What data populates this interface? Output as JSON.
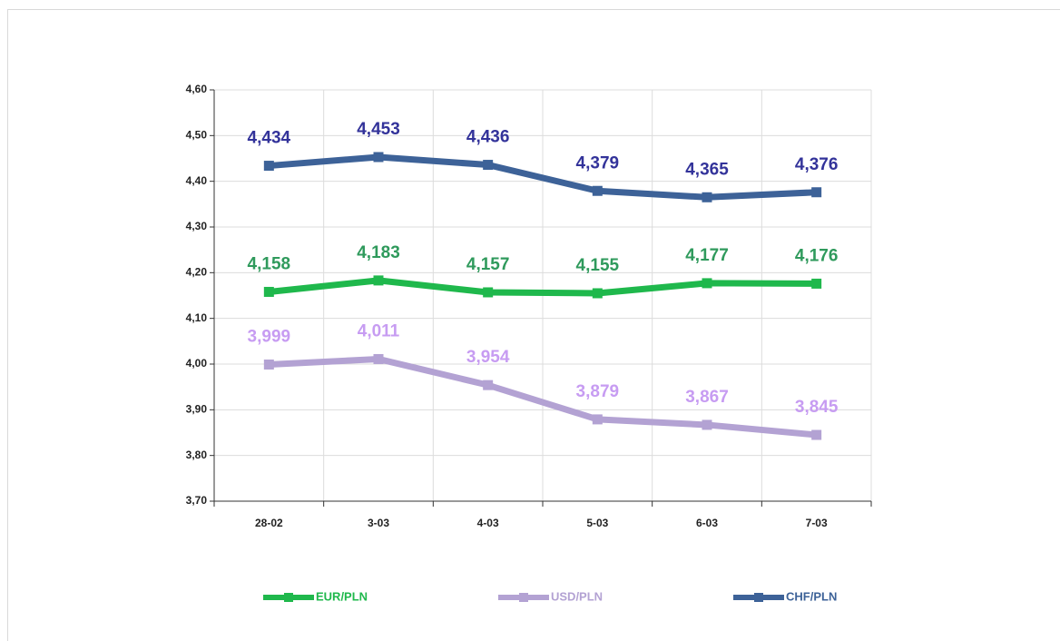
{
  "chart_data": {
    "type": "line",
    "categories": [
      "28-02",
      "3-03",
      "4-03",
      "5-03",
      "6-03",
      "7-03"
    ],
    "series": [
      {
        "name": "EUR/PLN",
        "color": "#1fb84c",
        "label_color": "#2f9a5c",
        "values": [
          4.158,
          4.183,
          4.157,
          4.155,
          4.177,
          4.176
        ],
        "value_labels": [
          "4,158",
          "4,183",
          "4,157",
          "4,155",
          "4,177",
          "4,176"
        ]
      },
      {
        "name": "USD/PLN",
        "color": "#b3a2d3",
        "label_color": "#c79cf2",
        "values": [
          3.999,
          4.011,
          3.954,
          3.879,
          3.867,
          3.845
        ],
        "value_labels": [
          "3,999",
          "4,011",
          "3,954",
          "3,879",
          "3,867",
          "3,845"
        ]
      },
      {
        "name": "CHF/PLN",
        "color": "#3d6298",
        "label_color": "#33339a",
        "values": [
          4.434,
          4.453,
          4.436,
          4.379,
          4.365,
          4.376
        ],
        "value_labels": [
          "4,434",
          "4,453",
          "4,436",
          "4,379",
          "4,365",
          "4,376"
        ]
      }
    ],
    "ylim": [
      3.7,
      4.6
    ],
    "yticks": [
      {
        "value": 3.7,
        "label": "3,70"
      },
      {
        "value": 3.8,
        "label": "3,80"
      },
      {
        "value": 3.9,
        "label": "3,90"
      },
      {
        "value": 4.0,
        "label": "4,00"
      },
      {
        "value": 4.1,
        "label": "4,10"
      },
      {
        "value": 4.2,
        "label": "4,20"
      },
      {
        "value": 4.3,
        "label": "4,30"
      },
      {
        "value": 4.4,
        "label": "4,40"
      },
      {
        "value": 4.5,
        "label": "4,50"
      },
      {
        "value": 4.6,
        "label": "4,60"
      }
    ],
    "grid": true,
    "legend": "bottom"
  }
}
